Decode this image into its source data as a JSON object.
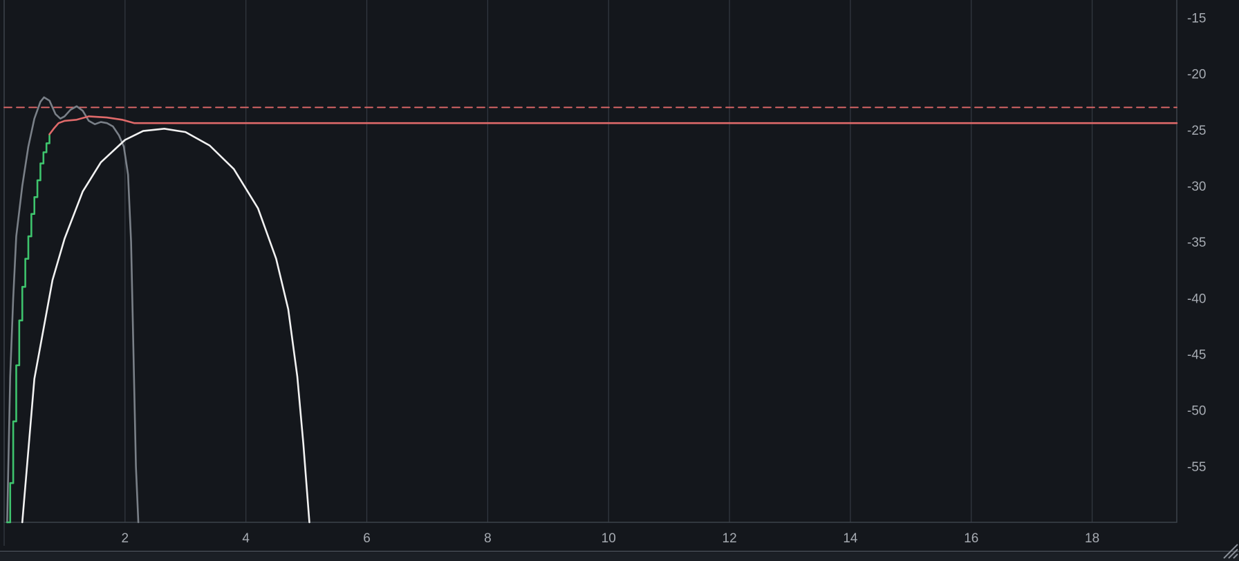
{
  "chart_data": {
    "type": "line",
    "title": "",
    "xlabel": "",
    "ylabel": "",
    "xlim": [
      0,
      19.4
    ],
    "ylim": [
      -60,
      -13.3
    ],
    "x_ticks": [
      "2",
      "4",
      "6",
      "8",
      "10",
      "12",
      "14",
      "16",
      "18"
    ],
    "x_tick_values": [
      2,
      4,
      6,
      8,
      10,
      12,
      14,
      16,
      18
    ],
    "y_ticks": [
      "-15",
      "-20",
      "-25",
      "-30",
      "-35",
      "-40",
      "-45",
      "-50",
      "-55"
    ],
    "y_tick_values": [
      -15,
      -20,
      -25,
      -30,
      -35,
      -40,
      -45,
      -50,
      -55
    ],
    "grid": "vertical",
    "target_level": -23,
    "series": [
      {
        "color": "#e36a6a",
        "style": "dashed",
        "points": [
          [
            0,
            -23
          ],
          [
            19.4,
            -23
          ]
        ]
      },
      {
        "color": "#7a8088",
        "style": "solid",
        "points": [
          [
            0.05,
            -60
          ],
          [
            0.1,
            -47
          ],
          [
            0.15,
            -40
          ],
          [
            0.2,
            -34.5
          ],
          [
            0.3,
            -30
          ],
          [
            0.4,
            -26.5
          ],
          [
            0.5,
            -24
          ],
          [
            0.6,
            -22.5
          ],
          [
            0.66,
            -22.1
          ],
          [
            0.75,
            -22.4
          ],
          [
            0.85,
            -23.6
          ],
          [
            0.93,
            -24
          ],
          [
            1.0,
            -23.8
          ],
          [
            1.1,
            -23.2
          ],
          [
            1.2,
            -22.9
          ],
          [
            1.3,
            -23.3
          ],
          [
            1.4,
            -24.2
          ],
          [
            1.5,
            -24.5
          ],
          [
            1.6,
            -24.3
          ],
          [
            1.7,
            -24.4
          ],
          [
            1.8,
            -24.7
          ],
          [
            1.9,
            -25.5
          ],
          [
            1.98,
            -26.5
          ],
          [
            2.05,
            -29
          ],
          [
            2.1,
            -35
          ],
          [
            2.14,
            -45
          ],
          [
            2.18,
            -55
          ],
          [
            2.22,
            -60
          ]
        ]
      },
      {
        "color": "#3ec46d",
        "style": "step",
        "points": [
          [
            0.05,
            -60
          ],
          [
            0.1,
            -56.5
          ],
          [
            0.15,
            -51
          ],
          [
            0.2,
            -46
          ],
          [
            0.25,
            -42
          ],
          [
            0.3,
            -39
          ],
          [
            0.35,
            -36.5
          ],
          [
            0.4,
            -34.5
          ],
          [
            0.45,
            -32.5
          ],
          [
            0.5,
            -31
          ],
          [
            0.55,
            -29.5
          ],
          [
            0.6,
            -28
          ],
          [
            0.65,
            -27
          ],
          [
            0.7,
            -26.2
          ],
          [
            0.75,
            -25.4
          ]
        ]
      },
      {
        "color": "#e06a6a",
        "style": "solid",
        "points": [
          [
            0.75,
            -25.4
          ],
          [
            0.82,
            -24.9
          ],
          [
            0.9,
            -24.4
          ],
          [
            1.0,
            -24.2
          ],
          [
            1.2,
            -24.1
          ],
          [
            1.4,
            -23.8
          ],
          [
            1.7,
            -23.9
          ],
          [
            1.95,
            -24.1
          ],
          [
            2.15,
            -24.4
          ],
          [
            4,
            -24.4
          ],
          [
            8,
            -24.4
          ],
          [
            12,
            -24.4
          ],
          [
            16,
            -24.4
          ],
          [
            19.4,
            -24.4
          ]
        ]
      },
      {
        "color": "#f2f2f2",
        "style": "solid",
        "points": [
          [
            0.3,
            -60
          ],
          [
            0.5,
            -47.2
          ],
          [
            0.8,
            -38.4
          ],
          [
            1.0,
            -34.7
          ],
          [
            1.3,
            -30.5
          ],
          [
            1.6,
            -27.9
          ],
          [
            2.0,
            -25.9
          ],
          [
            2.3,
            -25.1
          ],
          [
            2.65,
            -24.9
          ],
          [
            3.0,
            -25.2
          ],
          [
            3.4,
            -26.4
          ],
          [
            3.8,
            -28.5
          ],
          [
            4.2,
            -32
          ],
          [
            4.5,
            -36.5
          ],
          [
            4.7,
            -41
          ],
          [
            4.85,
            -47
          ],
          [
            4.95,
            -53
          ],
          [
            5.05,
            -60
          ]
        ]
      }
    ]
  }
}
